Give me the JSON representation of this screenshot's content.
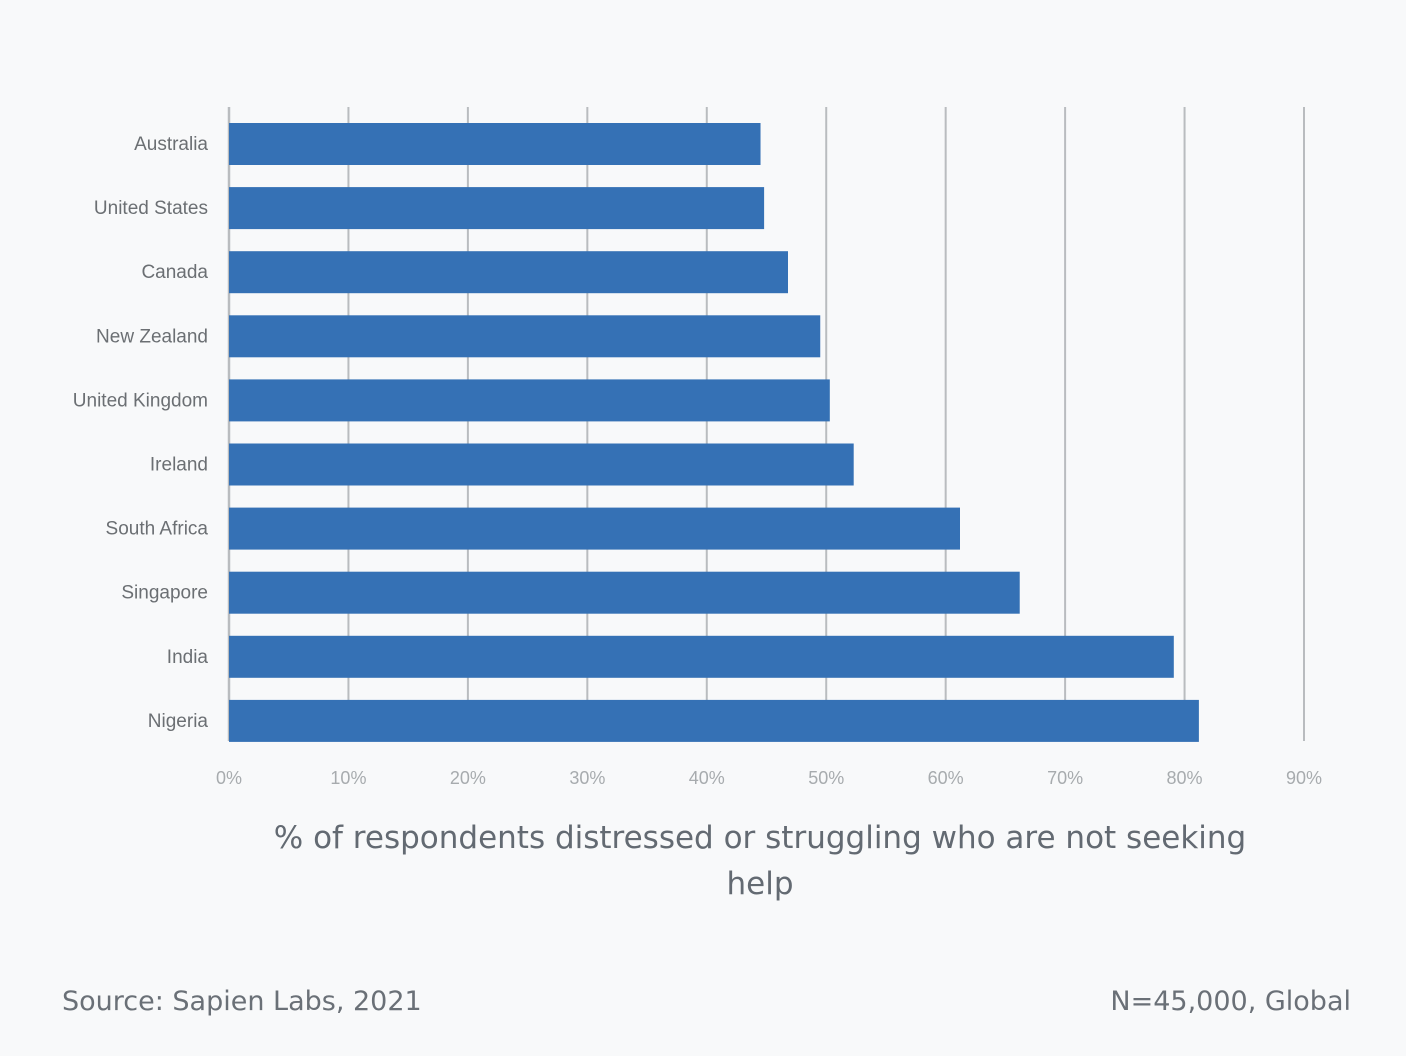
{
  "chart_data": {
    "type": "bar",
    "orientation": "horizontal",
    "categories": [
      "Australia",
      "United States",
      "Canada",
      "New Zealand",
      "United Kingdom",
      "Ireland",
      "South Africa",
      "Singapore",
      "India",
      "Nigeria"
    ],
    "values": [
      44.5,
      44.8,
      46.8,
      49.5,
      50.3,
      52.3,
      61.2,
      66.2,
      79.1,
      81.2
    ],
    "xlabel": "% of respondents distressed or struggling who are not seeking help",
    "ylabel": "",
    "xlim": [
      0,
      90
    ],
    "tick_values": [
      0,
      10,
      20,
      30,
      40,
      50,
      60,
      70,
      80,
      90
    ],
    "tick_labels": [
      "0%",
      "10%",
      "20%",
      "30%",
      "40%",
      "50%",
      "60%",
      "70%",
      "80%",
      "90%"
    ],
    "grid": true,
    "legend": "none",
    "bar_color": "#3571b5",
    "grid_color": "#b9bcbf"
  },
  "footer": {
    "source": "Source: Sapien Labs, 2021",
    "sample": "N=45,000, Global"
  }
}
